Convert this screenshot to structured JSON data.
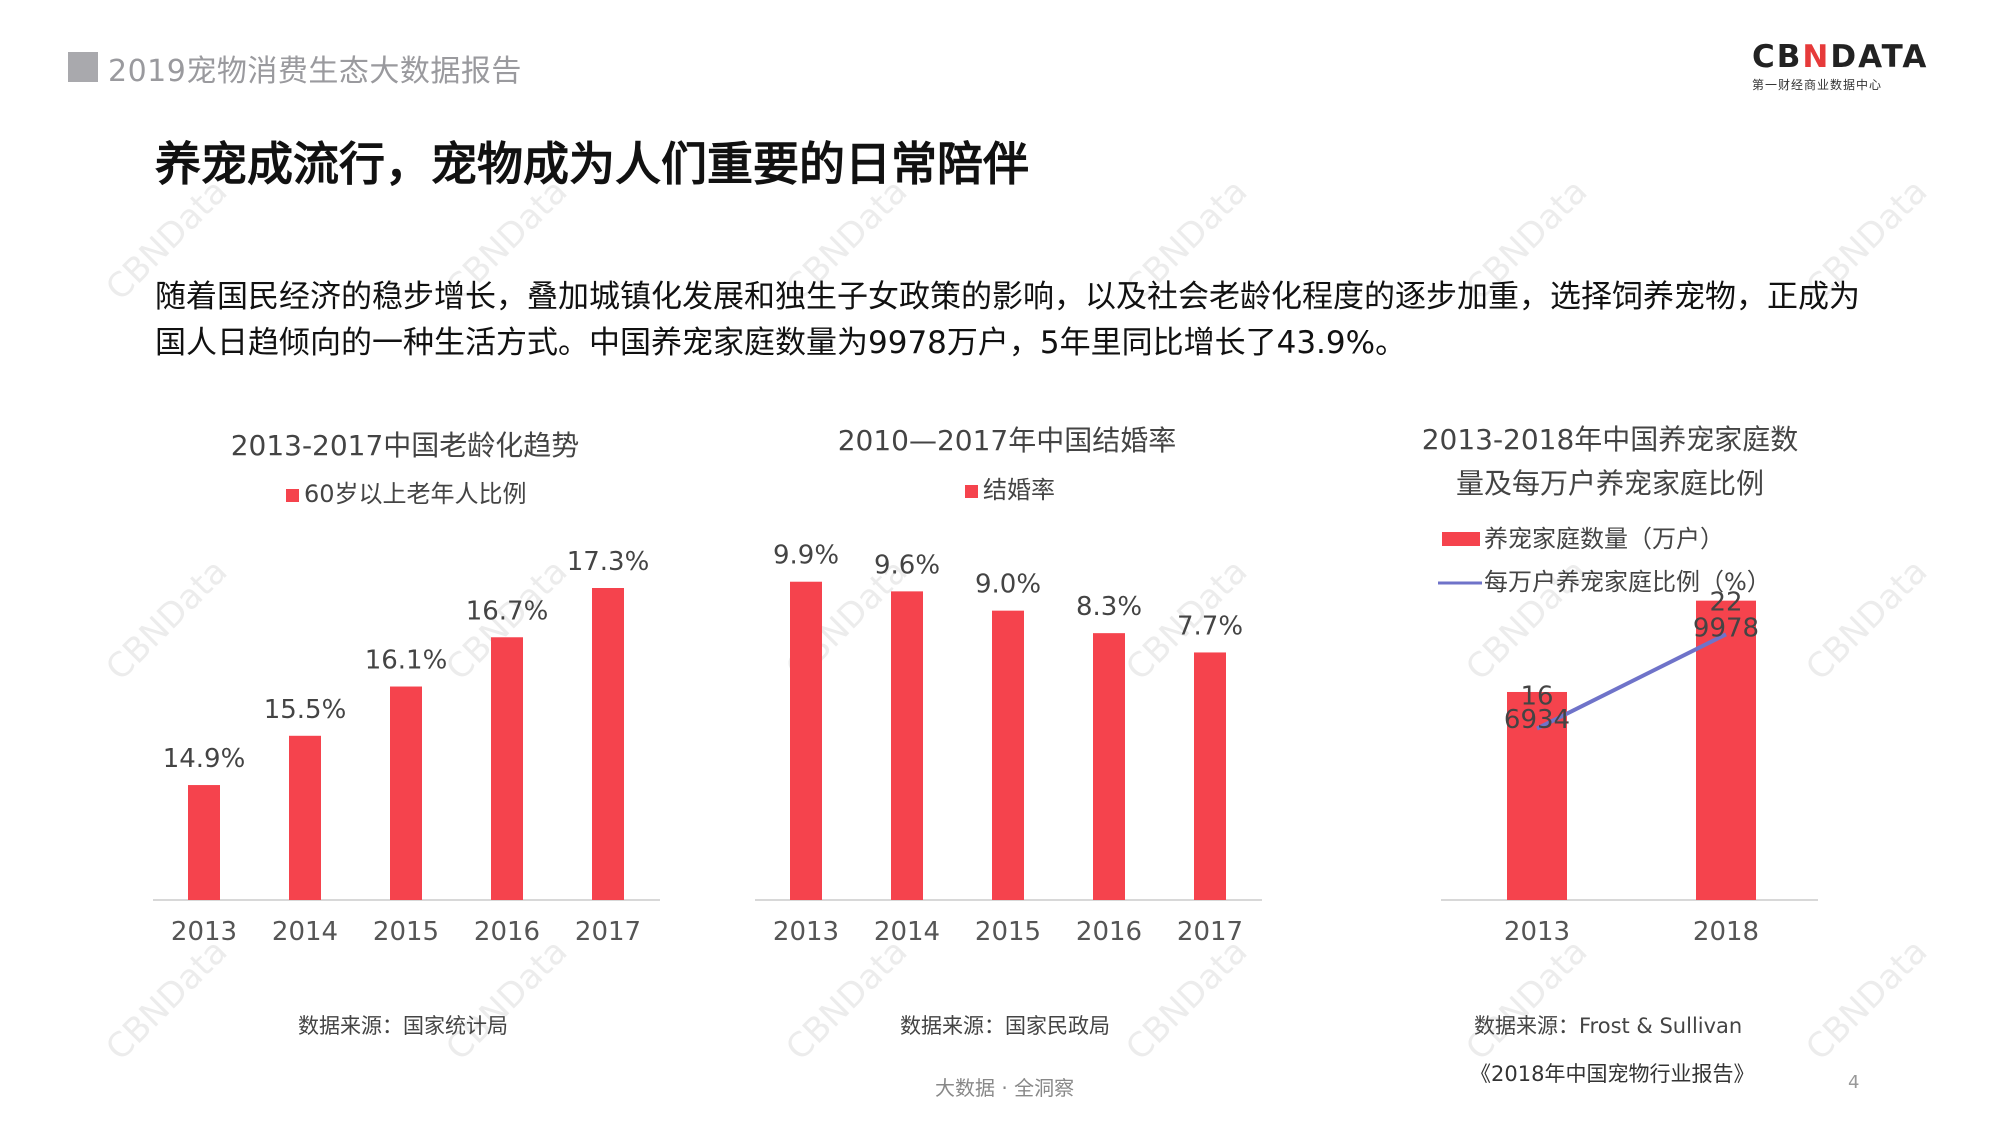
{
  "header": {
    "report_title": "2019宠物消费生态大数据报告"
  },
  "logo": {
    "main_pre": "CB",
    "main_x": "N",
    "main_post": "DATA",
    "sub": "第一财经商业数据中心"
  },
  "slide": {
    "title": "养宠成流行，宠物成为人们重要的日常陪伴",
    "intro": "随着国民经济的稳步增长，叠加城镇化发展和独生子女政策的影响，以及社会老龄化程度的逐步加重，选择饲养宠物，正成为国人日趋倾向的一种生活方式。中国养宠家庭数量为9978万户，5年里同比增长了43.9%。"
  },
  "colors": {
    "bar": "#f5434d",
    "line": "#6f73c9",
    "axis": "#d8d8d8",
    "watermark": "#ececec"
  },
  "chart_data": [
    {
      "type": "bar",
      "title": "2013-2017中国老龄化趋势",
      "categories": [
        "2013",
        "2014",
        "2015",
        "2016",
        "2017"
      ],
      "series": [
        {
          "name": "60岁以上老年人比例",
          "values": [
            14.9,
            15.5,
            16.1,
            16.7,
            17.3
          ]
        }
      ],
      "data_labels": [
        "14.9%",
        "15.5%",
        "16.1%",
        "16.7%",
        "17.3%"
      ],
      "ylim": [
        13.5,
        17.3
      ],
      "legend": "top-center",
      "grid": false
    },
    {
      "type": "bar",
      "title": "2010—2017年中国结婚率",
      "categories": [
        "2013",
        "2014",
        "2015",
        "2016",
        "2017"
      ],
      "series": [
        {
          "name": "结婚率",
          "values": [
            9.9,
            9.6,
            9.0,
            8.3,
            7.7
          ]
        }
      ],
      "data_labels": [
        "9.9%",
        "9.6%",
        "9.0%",
        "8.3%",
        "7.7%"
      ],
      "ylim": [
        0,
        10.7
      ],
      "legend": "top-center",
      "grid": false
    },
    {
      "type": "bar",
      "title_lines": [
        "2013-2018年中国养宠家庭数",
        "量及每万户养宠家庭比例"
      ],
      "categories": [
        "2013",
        "2018"
      ],
      "series": [
        {
          "name": "养宠家庭数量（万户）",
          "type": "bar",
          "values": [
            6934,
            9978
          ]
        },
        {
          "name": "每万户养宠家庭比例（%）",
          "type": "line",
          "values": [
            16,
            22
          ]
        }
      ],
      "bar_labels": [
        "6934",
        "9978"
      ],
      "line_labels": [
        "16",
        "22"
      ],
      "ylim": [
        0,
        12000
      ],
      "legend": "top-left",
      "grid": false
    }
  ],
  "sources": [
    "数据来源：国家统计局",
    "数据来源：国家民政局",
    "数据来源：Frost & Sullivan"
  ],
  "report_ref": "《2018年中国宠物行业报告》",
  "footer": {
    "slogan": "大数据 · 全洞察",
    "page": "4"
  },
  "watermark": "CBNData"
}
